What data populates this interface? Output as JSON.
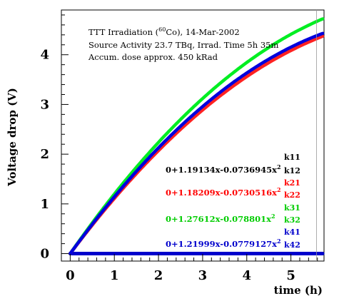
{
  "chart_data": {
    "type": "line",
    "xlabel": "time (h)",
    "ylabel": "Voltage drop (V)",
    "xlim": [
      -0.2,
      5.75
    ],
    "ylim": [
      -0.15,
      4.9
    ],
    "x_ticks": [
      0,
      1,
      2,
      3,
      4,
      5
    ],
    "y_ticks": [
      0,
      1,
      2,
      3,
      4
    ],
    "grid": false,
    "annotations": {
      "line1_prefix": "TTT Irradiation (",
      "line1_sup": "60",
      "line1_suffix": "Co), 14-Mar-2002",
      "line2": "Source Activity 23.7 TBq, Irrad. Time 5h 35m",
      "line3": "Accum. dose approx. 450 kRad"
    },
    "fits": [
      {
        "base": "0+1.19134x-0.0736945x",
        "sup": "2",
        "color": "#000000"
      },
      {
        "base": "0+1.18209x-0.0730516x",
        "sup": "2",
        "color": "#ff0000"
      },
      {
        "base": "0+1.27612x-0.078801x",
        "sup": "2",
        "color": "#00cc00"
      },
      {
        "base": "0+1.21999x-0.0779127x",
        "sup": "2",
        "color": "#0000cc"
      }
    ],
    "legend": [
      {
        "label": "k11",
        "color": "#000000"
      },
      {
        "label": "k12",
        "color": "#000000"
      },
      {
        "label": "k21",
        "color": "#ff0000"
      },
      {
        "label": "k22",
        "color": "#ff0000"
      },
      {
        "label": "k31",
        "color": "#00cc00"
      },
      {
        "label": "k32",
        "color": "#00cc00"
      },
      {
        "label": "k41",
        "color": "#0000cc"
      },
      {
        "label": "k42",
        "color": "#0000cc"
      }
    ],
    "series": [
      {
        "label": "k11",
        "color": "#000000",
        "a": 1.19134,
        "b": -0.0736945,
        "x_end": 5.5
      },
      {
        "label": "k12",
        "color": "#333333",
        "a": 1.19134,
        "b": -0.0736945,
        "x_end": 5.5
      },
      {
        "label": "k21",
        "color": "#ff0000",
        "flat": true,
        "value": 0,
        "x_end": 5.72
      },
      {
        "label": "k22",
        "color": "#ff2222",
        "a": 1.18209,
        "b": -0.0730516,
        "x_end": 5.72
      },
      {
        "label": "k31",
        "color": "#00dd00",
        "flat": true,
        "value": 0,
        "x_end": 5.72
      },
      {
        "label": "k32",
        "color": "#00ee22",
        "a": 1.27612,
        "b": -0.078801,
        "x_end": 5.72
      },
      {
        "label": "k41",
        "color": "#0000cc",
        "flat": true,
        "value": 0,
        "x_end": 5.72
      },
      {
        "label": "k42",
        "color": "#0000dd",
        "a": 1.21999,
        "b": -0.0779127,
        "x_end": 5.72
      }
    ],
    "end_marker_x": 5.58
  }
}
